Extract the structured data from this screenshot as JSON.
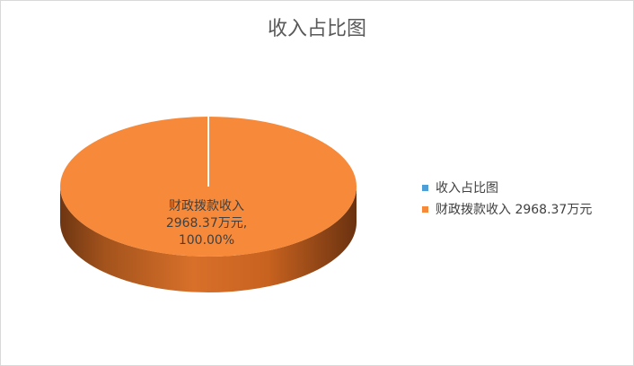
{
  "chart_data": {
    "type": "pie",
    "title": "收入占比图",
    "slices": [
      {
        "name": "财政拨款收入",
        "value": 2968.37,
        "unit": "万元",
        "percent": 100.0,
        "color": "#f68a3a"
      }
    ],
    "data_label": {
      "line1": "财政拨款收入",
      "line2": "2968.37万元,",
      "line3": "100.00%"
    },
    "legend": {
      "position": "right",
      "entries": [
        {
          "label": "收入占比图",
          "color": "#4e9fd8"
        },
        {
          "label": "财政拨款收入 2968.37万元",
          "color": "#f68a3a"
        }
      ]
    }
  }
}
